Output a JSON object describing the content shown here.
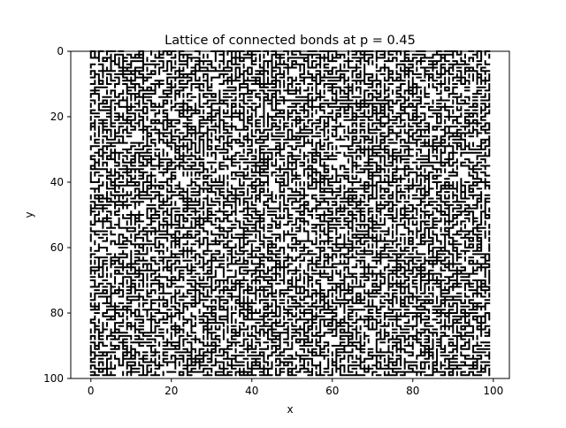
{
  "chart_data": {
    "type": "heatmap",
    "title": "Lattice of connected bonds at p = 0.45",
    "xlabel": "x",
    "ylabel": "y",
    "xlim": [
      -5,
      104
    ],
    "ylim": [
      100,
      0
    ],
    "y_inverted": true,
    "xticks": [
      0,
      20,
      40,
      60,
      80,
      100
    ],
    "yticks": [
      0,
      20,
      40,
      60,
      80,
      100
    ],
    "lattice_size": 100,
    "bond_probability": 0.45,
    "seed": 45,
    "bond_color": "#000000",
    "background_color": "#ffffff",
    "grid": false,
    "legend": "none"
  }
}
